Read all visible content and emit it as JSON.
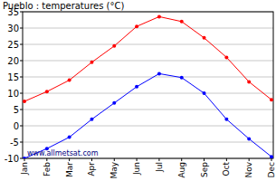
{
  "chart_data": {
    "type": "line",
    "title": "Pueblo : temperatures (°C)",
    "annotations": [
      "www.allmetsat.com"
    ],
    "categories": [
      "Jan",
      "Feb",
      "Mar",
      "Apr",
      "May",
      "Jun",
      "Jul",
      "Aug",
      "Sep",
      "Oct",
      "Nov",
      "Dec"
    ],
    "series": [
      {
        "color": "#ff0000",
        "marker": "circle",
        "values": [
          7.5,
          10.5,
          14,
          19.5,
          24.5,
          30.5,
          33.5,
          32,
          27,
          21,
          13.5,
          8
        ]
      },
      {
        "color": "#0000ff",
        "marker": "circle",
        "values": [
          -10,
          -7,
          -3.5,
          2,
          7,
          12,
          16,
          14.8,
          10,
          2,
          -4,
          -9.5
        ]
      }
    ],
    "ylim": [
      -10,
      35
    ],
    "yticks": [
      -10,
      -5,
      0,
      5,
      10,
      15,
      20,
      25,
      30,
      35
    ],
    "grid": true
  }
}
